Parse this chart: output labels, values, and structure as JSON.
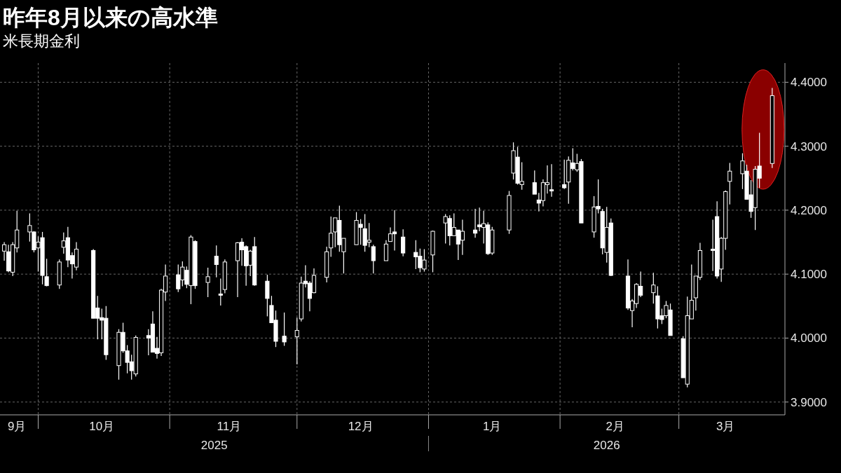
{
  "chart_data": {
    "type": "candlestick",
    "title": "昨年**8**月以来の高水準",
    "subtitle": "米長期金利",
    "color": "#ffffff",
    "grid": true,
    "x": [
      "2025-09-23",
      "2025-09-24",
      "2025-09-25",
      "2025-09-26",
      "2025-09-29",
      "2025-09-30",
      "2025-10-01",
      "2025-10-02",
      "2025-10-03",
      "2025-10-06",
      "2025-10-07",
      "2025-10-08",
      "2025-10-09",
      "2025-10-10",
      "2025-10-14",
      "2025-10-15",
      "2025-10-16",
      "2025-10-17",
      "2025-10-20",
      "2025-10-21",
      "2025-10-22",
      "2025-10-23",
      "2025-10-24",
      "2025-10-27",
      "2025-10-28",
      "2025-10-29",
      "2025-10-30",
      "2025-10-31",
      "2025-11-03",
      "2025-11-04",
      "2025-11-05",
      "2025-11-06",
      "2025-11-07",
      "2025-11-10",
      "2025-11-12",
      "2025-11-13",
      "2025-11-14",
      "2025-11-17",
      "2025-11-18",
      "2025-11-19",
      "2025-11-20",
      "2025-11-21",
      "2025-11-24",
      "2025-11-25",
      "2025-11-26",
      "2025-11-28",
      "2025-12-01",
      "2025-12-02",
      "2025-12-03",
      "2025-12-04",
      "2025-12-05",
      "2025-12-08",
      "2025-12-09",
      "2025-12-10",
      "2025-12-11",
      "2025-12-12",
      "2025-12-15",
      "2025-12-16",
      "2025-12-17",
      "2025-12-18",
      "2025-12-19",
      "2025-12-22",
      "2025-12-23",
      "2025-12-24",
      "2025-12-26",
      "2025-12-29",
      "2025-12-30",
      "2025-12-31",
      "2026-01-02",
      "2026-01-05",
      "2026-01-06",
      "2026-01-07",
      "2026-01-08",
      "2026-01-09",
      "2026-01-12",
      "2026-01-13",
      "2026-01-14",
      "2026-01-15",
      "2026-01-16",
      "2026-01-20",
      "2026-01-21",
      "2026-01-22",
      "2026-01-23",
      "2026-01-26",
      "2026-01-27",
      "2026-01-28",
      "2026-01-29",
      "2026-01-30",
      "2026-02-02",
      "2026-02-03",
      "2026-02-04",
      "2026-02-05",
      "2026-02-06",
      "2026-02-09",
      "2026-02-10",
      "2026-02-11",
      "2026-02-12",
      "2026-02-13",
      "2026-02-17",
      "2026-02-18",
      "2026-02-19",
      "2026-02-20",
      "2026-02-23",
      "2026-02-24",
      "2026-02-25",
      "2026-02-26",
      "2026-02-27",
      "2026-03-02",
      "2026-03-03",
      "2026-03-04",
      "2026-03-05",
      "2026-03-06",
      "2026-03-09",
      "2026-03-10",
      "2026-03-11",
      "2026-03-12",
      "2026-03-13",
      "2026-03-16",
      "2026-03-17",
      "2026-03-18",
      "2026-03-19",
      "2026-03-20",
      "2026-03-23"
    ],
    "ohlc": [
      [
        4.136,
        4.15,
        4.121,
        4.146
      ],
      [
        4.135,
        4.146,
        4.103,
        4.105
      ],
      [
        4.103,
        4.15,
        4.097,
        4.146
      ],
      [
        4.141,
        4.199,
        4.134,
        4.169
      ],
      [
        4.166,
        4.195,
        4.151,
        4.176
      ],
      [
        4.166,
        4.167,
        4.134,
        4.138
      ],
      [
        4.141,
        4.159,
        4.104,
        4.15
      ],
      [
        4.157,
        4.166,
        4.084,
        4.098
      ],
      [
        4.096,
        4.124,
        4.081,
        4.082
      ],
      [
        4.083,
        4.123,
        4.077,
        4.119
      ],
      [
        4.142,
        4.165,
        4.132,
        4.152
      ],
      [
        4.157,
        4.174,
        4.111,
        4.122
      ],
      [
        4.129,
        4.134,
        4.093,
        4.116
      ],
      [
        4.111,
        4.15,
        4.106,
        4.139
      ],
      [
        4.137,
        4.139,
        4.031,
        4.031
      ],
      [
        4.047,
        4.066,
        3.998,
        4.031
      ],
      [
        4.032,
        4.046,
        3.998,
        4.028
      ],
      [
        4.031,
        4.05,
        3.966,
        3.974
      ],
      [
        3.957,
        4.014,
        3.935,
        4.009
      ],
      [
        4.009,
        4.024,
        3.977,
        3.98
      ],
      [
        3.98,
        3.989,
        3.945,
        3.962
      ],
      [
        3.963,
        3.974,
        3.935,
        3.949
      ],
      [
        3.944,
        4.004,
        3.94,
        4.001
      ],
      [
        4.004,
        4.014,
        3.973,
        4.0
      ],
      [
        4.022,
        4.042,
        3.978,
        3.978
      ],
      [
        3.984,
        4.002,
        3.968,
        3.976
      ],
      [
        3.977,
        4.077,
        3.972,
        4.075
      ],
      [
        4.072,
        4.115,
        4.058,
        4.097
      ],
      [
        4.099,
        4.115,
        4.072,
        4.077
      ],
      [
        4.091,
        4.12,
        4.081,
        4.111
      ],
      [
        4.106,
        4.112,
        4.078,
        4.084
      ],
      [
        4.082,
        4.161,
        4.053,
        4.158
      ],
      [
        4.151,
        4.153,
        4.077,
        4.082
      ],
      [
        4.087,
        4.11,
        4.064,
        4.096
      ],
      [
        4.128,
        4.145,
        4.095,
        4.115
      ],
      [
        4.069,
        4.093,
        4.051,
        4.067
      ],
      [
        4.076,
        4.123,
        4.07,
        4.119
      ],
      [
        4.121,
        4.15,
        4.064,
        4.149
      ],
      [
        4.15,
        4.156,
        4.113,
        4.138
      ],
      [
        4.143,
        4.145,
        4.082,
        4.113
      ],
      [
        4.114,
        4.138,
        4.097,
        4.136
      ],
      [
        4.143,
        4.158,
        4.082,
        4.083
      ],
      [
        4.089,
        4.099,
        4.034,
        4.062
      ],
      [
        4.051,
        4.066,
        4.024,
        4.024
      ],
      [
        4.028,
        4.043,
        3.986,
        3.995
      ],
      [
        4.003,
        4.04,
        3.988,
        3.994
      ],
      [
        4.002,
        4.032,
        3.959,
        4.012
      ],
      [
        4.03,
        4.096,
        4.026,
        4.086
      ],
      [
        4.089,
        4.114,
        4.079,
        4.085
      ],
      [
        4.086,
        4.089,
        4.042,
        4.062
      ],
      [
        4.071,
        4.109,
        4.07,
        4.098
      ],
      [
        4.095,
        4.143,
        4.087,
        4.135
      ],
      [
        4.141,
        4.19,
        4.127,
        4.164
      ],
      [
        4.166,
        4.188,
        4.142,
        4.188
      ],
      [
        4.184,
        4.207,
        4.135,
        4.146
      ],
      [
        4.135,
        4.156,
        4.101,
        4.156
      ],
      [
        4.146,
        4.197,
        4.146,
        4.184
      ],
      [
        4.178,
        4.186,
        4.146,
        4.173
      ],
      [
        4.171,
        4.194,
        4.135,
        4.145
      ],
      [
        4.15,
        4.18,
        4.142,
        4.153
      ],
      [
        4.143,
        4.146,
        4.101,
        4.121
      ],
      [
        4.121,
        4.153,
        4.121,
        4.147
      ],
      [
        4.151,
        4.173,
        4.151,
        4.163
      ],
      [
        4.166,
        4.2,
        4.137,
        4.163
      ],
      [
        4.158,
        4.17,
        4.128,
        4.133
      ],
      [
        4.134,
        4.153,
        4.108,
        4.127
      ],
      [
        4.128,
        4.14,
        4.103,
        4.11
      ],
      [
        4.108,
        4.139,
        4.104,
        4.122
      ],
      [
        4.13,
        4.168,
        4.103,
        4.167
      ],
      [
        4.18,
        4.194,
        4.148,
        4.19
      ],
      [
        4.187,
        4.192,
        4.145,
        4.16
      ],
      [
        4.16,
        4.195,
        4.16,
        4.173
      ],
      [
        4.169,
        4.169,
        4.122,
        4.147
      ],
      [
        4.153,
        4.185,
        4.13,
        4.167
      ],
      [
        4.169,
        4.202,
        4.157,
        4.164
      ],
      [
        4.177,
        4.204,
        4.167,
        4.174
      ],
      [
        4.173,
        4.199,
        4.148,
        4.179
      ],
      [
        4.177,
        4.181,
        4.13,
        4.132
      ],
      [
        4.133,
        4.174,
        4.13,
        4.169
      ],
      [
        4.169,
        4.23,
        4.163,
        4.223
      ],
      [
        4.258,
        4.306,
        4.248,
        4.293
      ],
      [
        4.283,
        4.299,
        4.24,
        4.242
      ],
      [
        4.24,
        4.275,
        4.232,
        4.245
      ],
      [
        4.243,
        4.262,
        4.225,
        4.225
      ],
      [
        4.216,
        4.227,
        4.198,
        4.211
      ],
      [
        4.215,
        4.248,
        4.206,
        4.243
      ],
      [
        4.24,
        4.27,
        4.226,
        4.243
      ],
      [
        4.232,
        4.272,
        4.221,
        4.23
      ],
      [
        4.24,
        4.279,
        4.233,
        4.235
      ],
      [
        4.244,
        4.284,
        4.21,
        4.278
      ],
      [
        4.274,
        4.297,
        4.262,
        4.265
      ],
      [
        4.263,
        4.288,
        4.26,
        4.273
      ],
      [
        4.276,
        4.28,
        4.18,
        4.18
      ],
      [
        4.166,
        4.222,
        4.157,
        4.205
      ],
      [
        4.206,
        4.248,
        4.195,
        4.202
      ],
      [
        4.198,
        4.202,
        4.131,
        4.141
      ],
      [
        4.134,
        4.205,
        4.118,
        4.173
      ],
      [
        4.18,
        4.187,
        4.097,
        4.098
      ],
      [
        4.097,
        4.123,
        4.044,
        4.047
      ],
      [
        4.043,
        4.061,
        4.017,
        4.058
      ],
      [
        4.054,
        4.086,
        4.047,
        4.084
      ],
      [
        4.081,
        4.104,
        4.064,
        4.067
      ],
      [
        4.071,
        4.102,
        4.054,
        4.083
      ],
      [
        4.066,
        4.081,
        4.015,
        4.03
      ],
      [
        4.035,
        4.046,
        4.022,
        4.029
      ],
      [
        4.035,
        4.058,
        4.031,
        4.051
      ],
      [
        4.044,
        4.054,
        4.004,
        4.004
      ],
      [
        3.999,
        4.003,
        3.938,
        3.938
      ],
      [
        3.928,
        4.065,
        3.923,
        4.035
      ],
      [
        4.03,
        4.115,
        4.03,
        4.059
      ],
      [
        4.063,
        4.097,
        4.043,
        4.097
      ],
      [
        4.095,
        4.149,
        4.091,
        4.137
      ],
      [
        4.139,
        4.185,
        4.105,
        4.137
      ],
      [
        4.19,
        4.214,
        4.093,
        4.097
      ],
      [
        4.108,
        4.158,
        4.088,
        4.156
      ],
      [
        4.156,
        4.231,
        4.138,
        4.229
      ],
      [
        4.245,
        4.274,
        4.209,
        4.261
      ],
      [
        4.257,
        4.289,
        4.233,
        4.277
      ],
      [
        4.261,
        4.271,
        4.217,
        4.217
      ],
      [
        4.224,
        4.247,
        4.188,
        4.198
      ],
      [
        4.204,
        4.269,
        4.169,
        4.264
      ],
      [
        4.269,
        4.321,
        4.235,
        4.25
      ],
      [
        4.273,
        4.391,
        4.266,
        4.379
      ]
    ],
    "xlim": [
      "2025-09-22",
      "2026-03-26"
    ],
    "xticks": [
      {
        "value": "2025-09-26",
        "label": "9月"
      },
      {
        "value": "2025-10-01",
        "label": null
      },
      {
        "value": "2025-10-16",
        "label": "10月"
      },
      {
        "value": "2025-11-01",
        "label": null
      },
      {
        "value": "2025-11-15",
        "label": "11月"
      },
      {
        "value": "2025-12-01",
        "label": null
      },
      {
        "value": "2025-12-16",
        "label": "12月"
      },
      {
        "value": "2026-01-01",
        "label": null
      },
      {
        "value": "2026-01-16",
        "label": "1月"
      },
      {
        "value": "2026-02-01",
        "label": null
      },
      {
        "value": "2026-02-14",
        "label": "2月"
      },
      {
        "value": "2026-03-01",
        "label": null
      },
      {
        "value": "2026-03-12",
        "label": "3月"
      }
    ],
    "ylim": [
      3.88,
      4.43
    ],
    "yticks": [
      {
        "value": 3.9,
        "label": "3.9000"
      },
      {
        "value": 4.0,
        "label": "4.0000"
      },
      {
        "value": 4.1,
        "label": "4.1000"
      },
      {
        "value": 4.2,
        "label": "4.2000"
      },
      {
        "value": 4.3,
        "label": "4.3000"
      },
      {
        "value": 4.4,
        "label": "4.4000"
      }
    ],
    "annotations": [
      "2025",
      "2026"
    ]
  }
}
